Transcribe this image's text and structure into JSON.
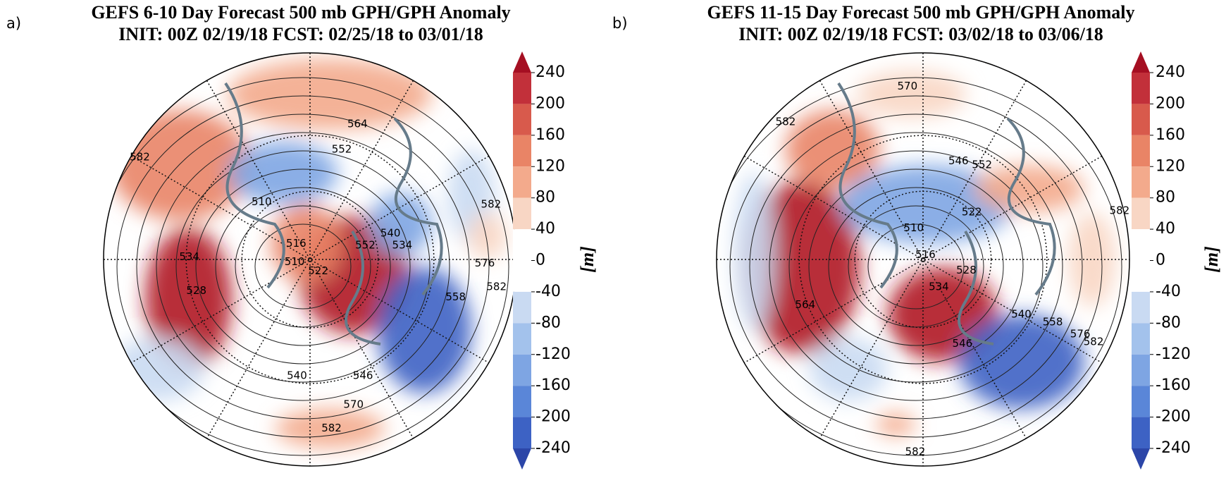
{
  "panels": [
    {
      "label": "a)",
      "title": [
        "GEFS 6-10 Day Forecast 500 mb GPH/GPH Anomaly",
        "INIT: 00Z 02/19/18   FCST: 02/25/18 to 03/01/18"
      ],
      "colorbar": {
        "ticks": [
          240,
          200,
          160,
          120,
          80,
          40,
          0,
          -40,
          -80,
          -120,
          -160,
          -200,
          -240
        ],
        "unit": "[m]",
        "colors": [
          "#a50f22",
          "#c2303a",
          "#d85a4c",
          "#e98466",
          "#f3aa8c",
          "#f8d6c4",
          "#ffffff",
          "#ffffff",
          "#c9daf2",
          "#a3c2ec",
          "#7ea5e3",
          "#5a86d8",
          "#3d62c4",
          "#2c46a8"
        ]
      },
      "contour_labels": [
        "564",
        "552",
        "582",
        "510",
        "582",
        "540",
        "534",
        "552",
        "534",
        "510",
        "516",
        "522",
        "528",
        "540",
        "546",
        "570",
        "582",
        "576",
        "558",
        "582"
      ]
    },
    {
      "label": "b)",
      "title": [
        "GEFS 11-15 Day Forecast 500 mb GPH/GPH Anomaly",
        "INIT: 00Z 02/19/18   FCST: 03/02/18 to 03/06/18"
      ],
      "colorbar": {
        "ticks": [
          240,
          200,
          160,
          120,
          80,
          40,
          0,
          -40,
          -80,
          -120,
          -160,
          -200,
          -240
        ],
        "unit": "[m]",
        "colors": [
          "#a50f22",
          "#c2303a",
          "#d85a4c",
          "#e98466",
          "#f3aa8c",
          "#f8d6c4",
          "#ffffff",
          "#ffffff",
          "#c9daf2",
          "#a3c2ec",
          "#7ea5e3",
          "#5a86d8",
          "#3d62c4",
          "#2c46a8"
        ]
      },
      "contour_labels": [
        "570",
        "582",
        "546",
        "552",
        "522",
        "510",
        "516",
        "528",
        "534",
        "564",
        "540",
        "558",
        "576",
        "582",
        "546",
        "582",
        "582"
      ]
    }
  ]
}
